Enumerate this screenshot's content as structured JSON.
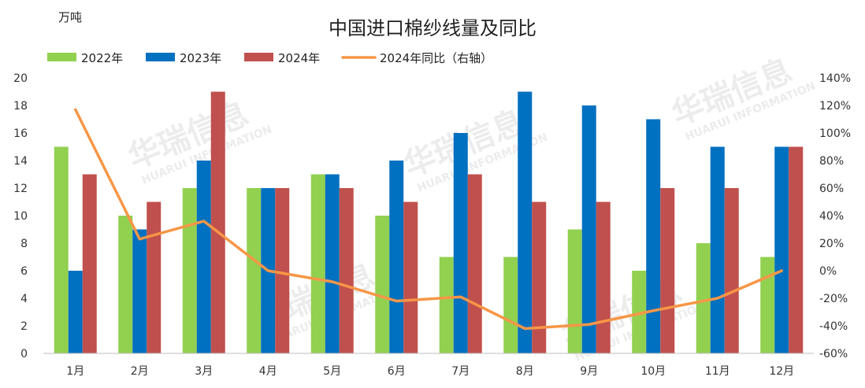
{
  "chart_data": {
    "type": "bar",
    "title": "中国进口棉纱线量及同比",
    "unit_label": "万吨",
    "categories": [
      "1月",
      "2月",
      "3月",
      "4月",
      "5月",
      "6月",
      "7月",
      "8月",
      "9月",
      "10月",
      "11月",
      "12月"
    ],
    "series": [
      {
        "name": "2022年",
        "kind": "bar",
        "color": "#92d050",
        "values": [
          15,
          10,
          12,
          12,
          13,
          10,
          7,
          7,
          9,
          6,
          8,
          7
        ]
      },
      {
        "name": "2023年",
        "kind": "bar",
        "color": "#0070c0",
        "values": [
          6,
          9,
          14,
          12,
          13,
          14,
          16,
          19,
          18,
          17,
          15,
          15
        ]
      },
      {
        "name": "2024年",
        "kind": "bar",
        "color": "#c0504d",
        "values": [
          13,
          11,
          19,
          12,
          12,
          11,
          13,
          11,
          11,
          12,
          12,
          15
        ]
      },
      {
        "name": "2024年同比（右轴）",
        "kind": "line",
        "axis": "right",
        "color": "#f79646",
        "values": [
          117,
          23,
          36,
          0,
          -8,
          -22,
          -19,
          -42,
          -39,
          -29,
          -20,
          0
        ]
      }
    ],
    "y_left": {
      "min": 0,
      "max": 20,
      "step": 2,
      "ticks": [
        "0",
        "2",
        "4",
        "6",
        "8",
        "10",
        "12",
        "14",
        "16",
        "18",
        "20"
      ]
    },
    "y_right": {
      "min": -60,
      "max": 140,
      "step": 20,
      "ticks": [
        "-60%",
        "-40%",
        "-20%",
        "0%",
        "20%",
        "40%",
        "60%",
        "80%",
        "100%",
        "120%",
        "140%"
      ]
    },
    "legend_position": "top-left",
    "watermark": {
      "cn": "华瑞信息",
      "en": "HUARUI INFORMATION"
    }
  }
}
